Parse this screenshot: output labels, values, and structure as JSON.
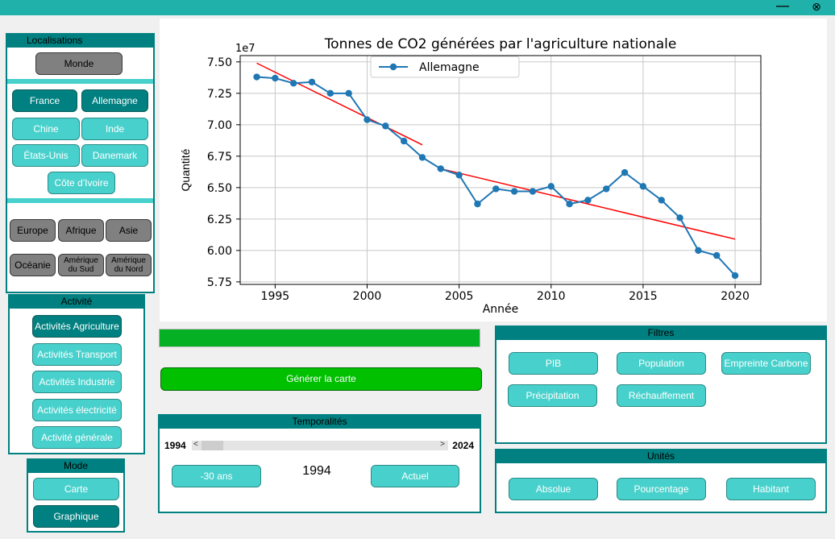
{
  "window": {
    "minimize_glyph": "—",
    "close_glyph": "⊗"
  },
  "localisations": {
    "title": "Localisations",
    "monde": "Monde",
    "countries": [
      "France",
      "Allemagne",
      "Chine",
      "Inde",
      "États-Unis",
      "Danemark",
      "Côte d'Ivoire"
    ],
    "continents": [
      "Europe",
      "Afrique",
      "Asie",
      "Océanie",
      "Amérique du Sud",
      "Amérique du Nord"
    ]
  },
  "activite": {
    "title": "Activité",
    "items": [
      "Activités Agriculture",
      "Activités Transport",
      "Activités Industrie",
      "Activités électricité",
      "Activité générale"
    ]
  },
  "mode": {
    "title": "Mode",
    "items": [
      "Carte",
      "Graphique"
    ]
  },
  "progress": {
    "fraction": 1.0
  },
  "generate_button": "Générer la carte",
  "temporalites": {
    "title": "Temporalités",
    "year_min": "1994",
    "year_max": "2024",
    "slider_value": 1994,
    "minus_button": "-30 ans",
    "current_year": "1994",
    "actuel_button": "Actuel",
    "arrow_left": "<",
    "arrow_right": ">"
  },
  "filtres": {
    "title": "Filtres",
    "items": [
      "PIB",
      "Population",
      "Empreinte Carbone",
      "Précipitation",
      "Réchauffement"
    ]
  },
  "unites": {
    "title": "Unités",
    "items": [
      "Absolue",
      "Pourcentage",
      "Habitant"
    ]
  },
  "colors": {
    "accent": "#008080",
    "teal_light": "#48d1cc",
    "titlebar": "#20b2aa",
    "series": "#1f77b4",
    "trend": "#ff0000"
  },
  "chart_data": {
    "type": "line",
    "title": "Tonnes de CO2 générées par l'agriculture nationale",
    "xlabel": "Année",
    "ylabel": "Quantité",
    "y_offset_label": "1e7",
    "xlim": [
      1993.1,
      2021.4
    ],
    "ylim": [
      5.73,
      7.55
    ],
    "xticks": [
      1995,
      2000,
      2005,
      2010,
      2015,
      2020
    ],
    "yticks": [
      5.75,
      6.0,
      6.25,
      6.5,
      6.75,
      7.0,
      7.25,
      7.5
    ],
    "ytick_labels": [
      "5.75",
      "6.00",
      "6.25",
      "6.50",
      "6.75",
      "7.00",
      "7.25",
      "7.50"
    ],
    "grid": true,
    "legend": "top-center",
    "series": [
      {
        "name": "Allemagne",
        "x": [
          1994,
          1995,
          1996,
          1997,
          1998,
          1999,
          2000,
          2001,
          2002,
          2003,
          2004,
          2005,
          2006,
          2007,
          2008,
          2009,
          2010,
          2011,
          2012,
          2013,
          2014,
          2015,
          2016,
          2017,
          2018,
          2019,
          2020
        ],
        "y": [
          7.38,
          7.37,
          7.33,
          7.34,
          7.25,
          7.25,
          7.04,
          6.99,
          6.87,
          6.74,
          6.65,
          6.6,
          6.37,
          6.49,
          6.47,
          6.47,
          6.51,
          6.37,
          6.4,
          6.49,
          6.62,
          6.51,
          6.4,
          6.26,
          6.0,
          5.96,
          5.8
        ]
      }
    ],
    "trend_lines": [
      {
        "x": [
          1994,
          2003
        ],
        "y": [
          7.49,
          6.84
        ]
      },
      {
        "x": [
          2004,
          2020
        ],
        "y": [
          6.65,
          6.09
        ]
      }
    ]
  }
}
